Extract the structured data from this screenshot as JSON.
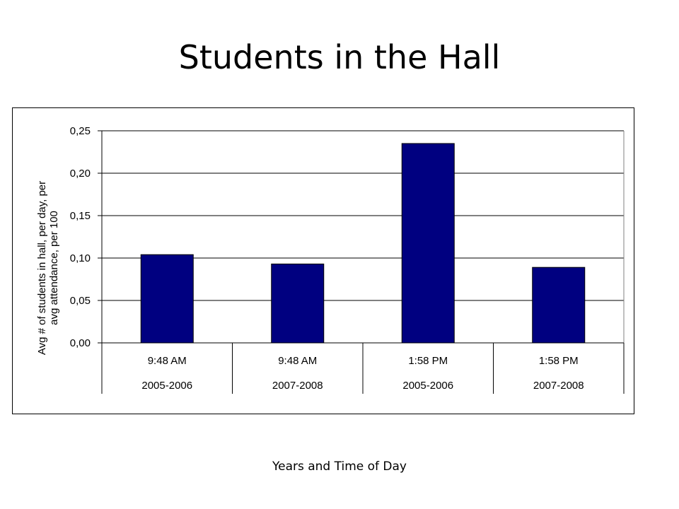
{
  "slide": {
    "title": "Students in the Hall",
    "caption": "Years and Time of Day"
  },
  "chart_data": {
    "type": "bar",
    "categories": [
      [
        "9:48 AM",
        "2005-2006"
      ],
      [
        "9:48 AM",
        "2007-2008"
      ],
      [
        "1:58 PM",
        "2005-2006"
      ],
      [
        "1:58 PM",
        "2007-2008"
      ]
    ],
    "values": [
      0.104,
      0.093,
      0.235,
      0.089
    ],
    "ylabel": [
      "Avg # of students in hall, per day, per",
      "avg attendance, per 100"
    ],
    "ylim": [
      0,
      0.25
    ],
    "yticks": [
      "0,00",
      "0,05",
      "0,10",
      "0,15",
      "0,20",
      "0,25"
    ],
    "grid": true,
    "bar_color": "#000080",
    "legend": "none"
  }
}
